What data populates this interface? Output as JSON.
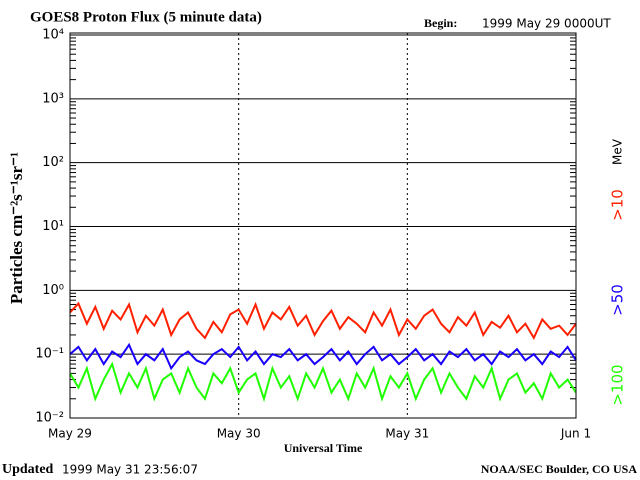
{
  "chart_data": {
    "type": "line",
    "title": "GOES8 Proton Flux (5 minute data)",
    "begin_label": "Begin:",
    "begin": "1999 May 29 0000UT",
    "y_label": "Particles cm⁻²s⁻¹sr⁻¹",
    "x_label": "Universal Time",
    "updated_label": "Updated",
    "updated": "1999 May 31 23:56:07",
    "source": "NOAA/SEC Boulder, CO USA",
    "unit": "MeV",
    "log_y": true,
    "grid": true,
    "xlim": [
      0,
      3
    ],
    "xticks": [
      {
        "value": 0,
        "label": "May 29"
      },
      {
        "value": 1,
        "label": "May 30"
      },
      {
        "value": 2,
        "label": "May 31"
      },
      {
        "value": 3,
        "label": "Jun 1"
      }
    ],
    "ylim": [
      0.01,
      10000
    ],
    "yticks": [
      {
        "value": 0.01,
        "label": "10⁻²"
      },
      {
        "value": 0.1,
        "label": "10⁻¹"
      },
      {
        "value": 1,
        "label": "10⁰"
      },
      {
        "value": 10,
        "label": "10¹"
      },
      {
        "value": 100,
        "label": "10²"
      },
      {
        "value": 1000,
        "label": "10³"
      },
      {
        "value": 10000,
        "label": "10⁴"
      }
    ],
    "x": [
      0,
      0.05,
      0.1,
      0.15,
      0.2,
      0.25,
      0.3,
      0.35,
      0.4,
      0.45,
      0.5,
      0.55,
      0.6,
      0.65,
      0.7,
      0.75,
      0.8,
      0.85,
      0.9,
      0.95,
      1,
      1.05,
      1.1,
      1.15,
      1.2,
      1.25,
      1.3,
      1.35,
      1.4,
      1.45,
      1.5,
      1.55,
      1.6,
      1.65,
      1.7,
      1.75,
      1.8,
      1.85,
      1.9,
      1.95,
      2,
      2.05,
      2.1,
      2.15,
      2.2,
      2.25,
      2.3,
      2.35,
      2.4,
      2.45,
      2.5,
      2.55,
      2.6,
      2.65,
      2.7,
      2.75,
      2.8,
      2.85,
      2.9,
      2.95,
      3
    ],
    "series": [
      {
        "name": ">10",
        "color": "#ff2000",
        "values": [
          0.45,
          0.62,
          0.3,
          0.55,
          0.25,
          0.48,
          0.35,
          0.6,
          0.22,
          0.4,
          0.28,
          0.5,
          0.2,
          0.35,
          0.45,
          0.25,
          0.18,
          0.32,
          0.22,
          0.42,
          0.5,
          0.3,
          0.6,
          0.25,
          0.45,
          0.35,
          0.55,
          0.28,
          0.4,
          0.2,
          0.33,
          0.48,
          0.25,
          0.38,
          0.3,
          0.22,
          0.45,
          0.28,
          0.5,
          0.2,
          0.35,
          0.25,
          0.4,
          0.5,
          0.3,
          0.22,
          0.38,
          0.28,
          0.45,
          0.2,
          0.32,
          0.26,
          0.4,
          0.22,
          0.3,
          0.18,
          0.35,
          0.25,
          0.28,
          0.2,
          0.3
        ]
      },
      {
        "name": ">50",
        "color": "#1a00ff",
        "values": [
          0.1,
          0.13,
          0.08,
          0.12,
          0.07,
          0.11,
          0.09,
          0.14,
          0.07,
          0.1,
          0.08,
          0.12,
          0.06,
          0.09,
          0.11,
          0.08,
          0.07,
          0.1,
          0.12,
          0.09,
          0.13,
          0.08,
          0.11,
          0.07,
          0.1,
          0.09,
          0.12,
          0.08,
          0.1,
          0.07,
          0.09,
          0.12,
          0.08,
          0.11,
          0.07,
          0.1,
          0.13,
          0.08,
          0.1,
          0.07,
          0.09,
          0.12,
          0.08,
          0.1,
          0.07,
          0.11,
          0.09,
          0.12,
          0.08,
          0.1,
          0.07,
          0.11,
          0.09,
          0.12,
          0.08,
          0.1,
          0.07,
          0.11,
          0.09,
          0.13,
          0.08
        ]
      },
      {
        "name": ">100",
        "color": "#20ff00",
        "values": [
          0.05,
          0.03,
          0.06,
          0.02,
          0.04,
          0.07,
          0.025,
          0.05,
          0.03,
          0.06,
          0.02,
          0.04,
          0.05,
          0.025,
          0.06,
          0.03,
          0.02,
          0.05,
          0.035,
          0.06,
          0.025,
          0.04,
          0.05,
          0.02,
          0.06,
          0.03,
          0.045,
          0.02,
          0.05,
          0.03,
          0.06,
          0.025,
          0.04,
          0.02,
          0.05,
          0.03,
          0.06,
          0.02,
          0.045,
          0.03,
          0.05,
          0.02,
          0.04,
          0.06,
          0.025,
          0.05,
          0.03,
          0.02,
          0.045,
          0.03,
          0.06,
          0.02,
          0.04,
          0.05,
          0.025,
          0.035,
          0.02,
          0.05,
          0.03,
          0.04,
          0.025
        ]
      }
    ]
  }
}
